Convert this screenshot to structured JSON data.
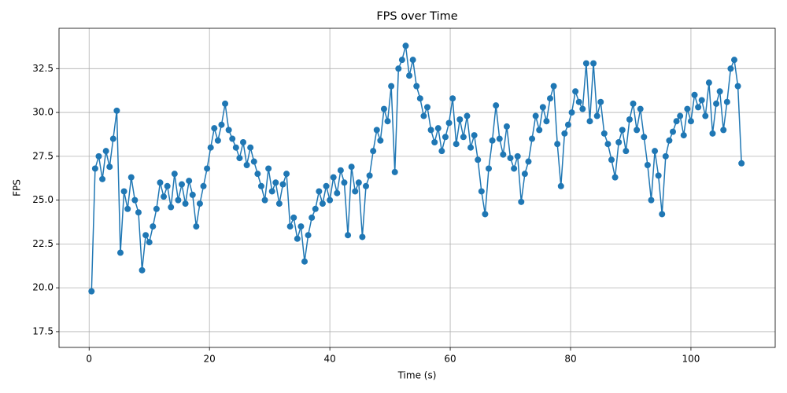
{
  "chart_data": {
    "type": "line",
    "title": "FPS over Time",
    "x_label": "Time (s)",
    "y_label": "FPS",
    "color": "#1f77b4",
    "grid": true,
    "marker": "circle",
    "xlim": [
      -5,
      114
    ],
    "ylim": [
      16.6,
      34.8
    ],
    "xticks": [
      0,
      20,
      40,
      60,
      80,
      100
    ],
    "yticks": [
      17.5,
      {
        "value": 20,
        "label": "20.0"
      },
      22.5,
      {
        "value": 25,
        "label": "25.0"
      },
      27.5,
      {
        "value": 30,
        "label": "30.0"
      },
      32.5
    ],
    "x": [
      0.4,
      1.0,
      1.6,
      2.2,
      2.8,
      3.4,
      4.0,
      4.6,
      5.2,
      5.8,
      6.4,
      7.0,
      7.6,
      8.2,
      8.8,
      9.4,
      10.0,
      10.6,
      11.2,
      11.8,
      12.4,
      13.0,
      13.6,
      14.2,
      14.8,
      15.4,
      16.0,
      16.6,
      17.2,
      17.8,
      18.4,
      19.0,
      19.6,
      20.2,
      20.8,
      21.4,
      22.0,
      22.6,
      23.2,
      23.8,
      24.4,
      25.0,
      25.6,
      26.2,
      26.8,
      27.4,
      28.0,
      28.6,
      29.2,
      29.8,
      30.4,
      31.0,
      31.6,
      32.2,
      32.8,
      33.4,
      34.0,
      34.6,
      35.2,
      35.8,
      36.4,
      37.0,
      37.6,
      38.2,
      38.8,
      39.4,
      40.0,
      40.6,
      41.2,
      41.8,
      42.4,
      43.0,
      43.6,
      44.2,
      44.8,
      45.4,
      46.0,
      46.6,
      47.2,
      47.8,
      48.4,
      49.0,
      49.6,
      50.2,
      50.8,
      51.4,
      52.0,
      52.6,
      53.2,
      53.8,
      54.4,
      55.0,
      55.6,
      56.2,
      56.8,
      57.4,
      58.0,
      58.6,
      59.2,
      59.8,
      60.4,
      61.0,
      61.6,
      62.2,
      62.8,
      63.4,
      64.0,
      64.6,
      65.2,
      65.8,
      66.4,
      67.0,
      67.6,
      68.2,
      68.8,
      69.4,
      70.0,
      70.6,
      71.2,
      71.8,
      72.4,
      73.0,
      73.6,
      74.2,
      74.8,
      75.4,
      76.0,
      76.6,
      77.2,
      77.8,
      78.4,
      79.0,
      79.6,
      80.2,
      80.8,
      81.4,
      82.0,
      82.6,
      83.2,
      83.8,
      84.4,
      85.0,
      85.6,
      86.2,
      86.8,
      87.4,
      88.0,
      88.6,
      89.2,
      89.8,
      90.4,
      91.0,
      91.6,
      92.2,
      92.8,
      93.4,
      94.0,
      94.6,
      95.2,
      95.8,
      96.4,
      97.0,
      97.6,
      98.2,
      98.8,
      99.4,
      100.0,
      100.6,
      101.2,
      101.8,
      102.4,
      103.0,
      103.6,
      104.2,
      104.8,
      105.4,
      106.0,
      106.6,
      107.2,
      107.8,
      108.4
    ],
    "values": [
      19.8,
      26.8,
      27.5,
      26.2,
      27.8,
      26.9,
      28.5,
      30.1,
      22.0,
      25.5,
      24.5,
      26.3,
      25.0,
      24.3,
      21.0,
      23.0,
      22.6,
      23.5,
      24.5,
      26.0,
      25.2,
      25.8,
      24.6,
      26.5,
      25.0,
      25.9,
      24.8,
      26.1,
      25.3,
      23.5,
      24.8,
      25.8,
      26.8,
      28.0,
      29.1,
      28.4,
      29.3,
      30.5,
      29.0,
      28.5,
      28.0,
      27.4,
      28.3,
      27.0,
      28.0,
      27.2,
      26.5,
      25.8,
      25.0,
      26.8,
      25.5,
      26.0,
      24.8,
      25.9,
      26.5,
      23.5,
      24.0,
      22.8,
      23.5,
      21.5,
      23.0,
      24.0,
      24.5,
      25.5,
      24.8,
      25.8,
      25.0,
      26.3,
      25.4,
      26.7,
      26.0,
      23.0,
      26.9,
      25.5,
      26.0,
      22.9,
      25.8,
      26.4,
      27.8,
      29.0,
      28.4,
      30.2,
      29.5,
      31.5,
      26.6,
      32.5,
      33.0,
      33.8,
      32.1,
      33.0,
      31.5,
      30.8,
      29.8,
      30.3,
      29.0,
      28.3,
      29.1,
      27.8,
      28.6,
      29.4,
      30.8,
      28.2,
      29.6,
      28.6,
      29.8,
      28.0,
      28.7,
      27.3,
      25.5,
      24.2,
      26.8,
      28.4,
      30.4,
      28.5,
      27.6,
      29.2,
      27.4,
      26.8,
      27.5,
      24.9,
      26.5,
      27.2,
      28.5,
      29.8,
      29.0,
      30.3,
      29.5,
      30.8,
      31.5,
      28.2,
      25.8,
      28.8,
      29.3,
      30.0,
      31.2,
      30.6,
      30.2,
      32.8,
      29.5,
      32.8,
      29.8,
      30.6,
      28.8,
      28.2,
      27.3,
      26.3,
      28.3,
      29.0,
      27.8,
      29.6,
      30.5,
      29.0,
      30.2,
      28.6,
      27.0,
      25.0,
      27.8,
      26.4,
      24.2,
      27.5,
      28.4,
      28.9,
      29.5,
      29.8,
      28.7,
      30.2,
      29.5,
      31.0,
      30.3,
      30.7,
      29.8,
      31.7,
      28.8,
      30.5,
      31.2,
      29.0,
      30.6,
      32.5,
      33.0,
      31.5,
      27.1
    ]
  }
}
